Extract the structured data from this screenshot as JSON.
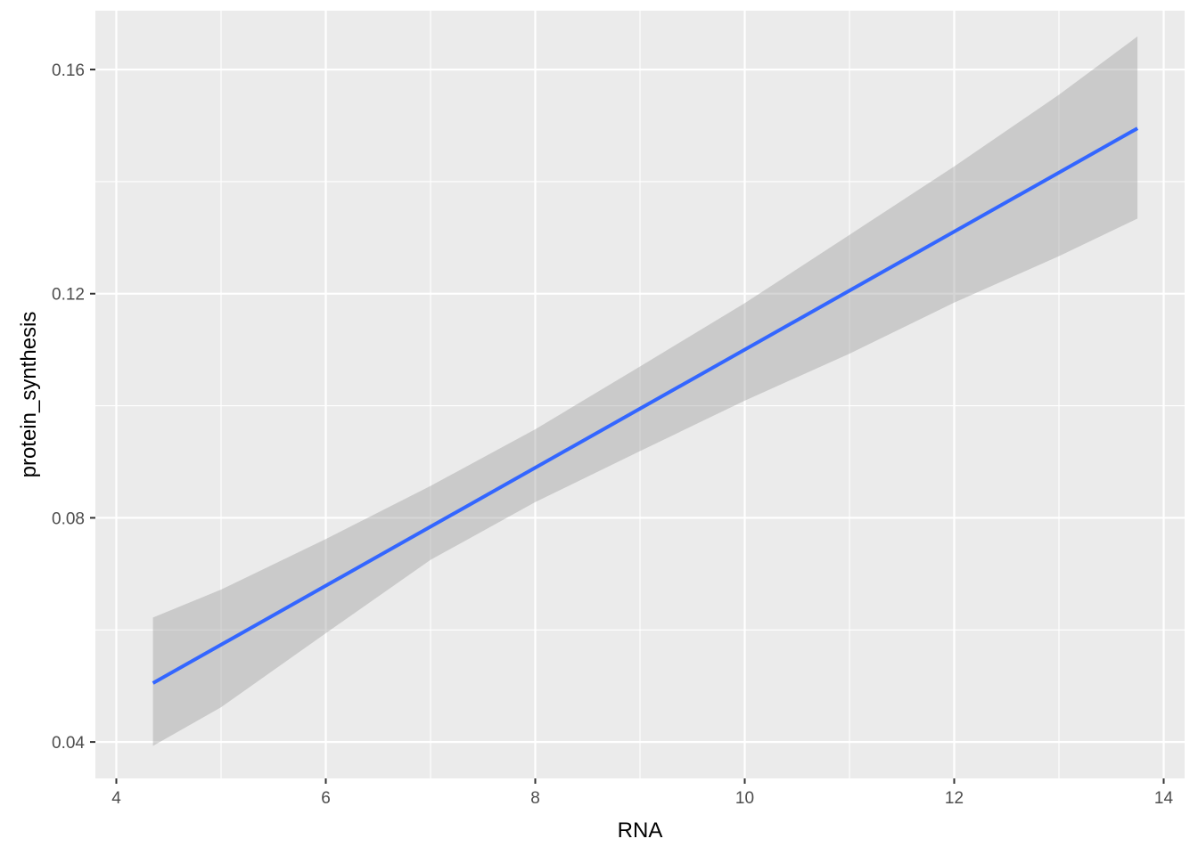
{
  "chart_data": {
    "type": "line",
    "xlabel": "RNA",
    "ylabel": "protein_synthesis",
    "xlim": [
      3.8,
      14.2
    ],
    "ylim": [
      0.0335,
      0.1705
    ],
    "x_ticks": [
      4,
      6,
      8,
      10,
      12,
      14
    ],
    "x_tick_labels": [
      "4",
      "6",
      "8",
      "10",
      "12",
      "14"
    ],
    "y_ticks": [
      0.04,
      0.08,
      0.12,
      0.16
    ],
    "y_tick_labels": [
      "0.04",
      "0.08",
      "0.12",
      "0.16"
    ],
    "x_minor_ticks": [
      5,
      7,
      9,
      11,
      13
    ],
    "y_minor_ticks": [
      0.06,
      0.1,
      0.14
    ],
    "grid": true,
    "series": [
      {
        "color": "#3366FF",
        "x": [
          4.35,
          13.75
        ],
        "y": [
          0.0505,
          0.1495
        ]
      }
    ],
    "confidence_band": {
      "color": "#999999",
      "x": [
        4.35,
        5.0,
        6.0,
        7.0,
        8.0,
        9.0,
        10.0,
        11.0,
        12.0,
        13.0,
        13.75
      ],
      "upper": [
        0.0622,
        0.0672,
        0.0762,
        0.0857,
        0.0958,
        0.107,
        0.1183,
        0.1305,
        0.1427,
        0.1555,
        0.1659
      ],
      "lower": [
        0.0393,
        0.0462,
        0.0594,
        0.0725,
        0.0828,
        0.0919,
        0.1009,
        0.1093,
        0.1184,
        0.1267,
        0.1334
      ]
    }
  }
}
